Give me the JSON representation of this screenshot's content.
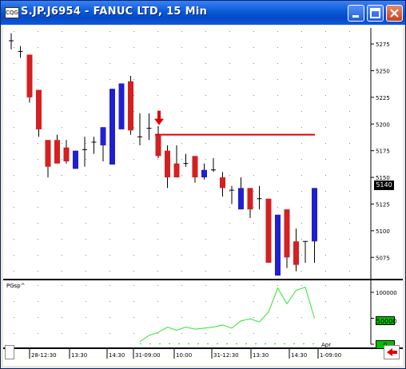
{
  "window": {
    "title": "S.JP.J6954 - FANUC LTD, 15 Min",
    "app_icon": "chart-app-icon"
  },
  "title_buttons": [
    "minimize",
    "maximize",
    "close"
  ],
  "colors": {
    "up": "#2020d0",
    "down": "#d42020",
    "signal_line": "#e00000",
    "indicator": "#33e033",
    "badge": "#00c000"
  },
  "chart_data": {
    "type": "candlestick",
    "title": "S.JP.J6954 - FANUC LTD, 15 Min",
    "y_ticks": [
      5275,
      5250,
      5225,
      5200,
      5175,
      5150,
      5125,
      5100,
      5075
    ],
    "ylim": [
      5055,
      5290
    ],
    "last_price": "5140",
    "x_tick_labels": [
      "28-12:30",
      "13:30",
      "14:30",
      "31-09:00",
      "10:00",
      "31-12:30",
      "13:30",
      "14:30",
      "1-09:00"
    ],
    "month_label": "Apr",
    "signal_level": 5190,
    "candles": [
      {
        "o": 5278,
        "h": 5285,
        "l": 5270,
        "c": 5278
      },
      {
        "o": 5268,
        "h": 5273,
        "l": 5262,
        "c": 5268
      },
      {
        "o": 5265,
        "h": 5265,
        "l": 5220,
        "c": 5225
      },
      {
        "o": 5232,
        "h": 5232,
        "l": 5188,
        "c": 5195
      },
      {
        "o": 5185,
        "h": 5185,
        "l": 5150,
        "c": 5160
      },
      {
        "o": 5185,
        "h": 5190,
        "l": 5163,
        "c": 5163
      },
      {
        "o": 5178,
        "h": 5185,
        "l": 5163,
        "c": 5165
      },
      {
        "o": 5158,
        "h": 5175,
        "l": 5158,
        "c": 5175
      },
      {
        "o": 5176,
        "h": 5188,
        "l": 5160,
        "c": 5176
      },
      {
        "o": 5183,
        "h": 5188,
        "l": 5172,
        "c": 5183
      },
      {
        "o": 5180,
        "h": 5197,
        "l": 5165,
        "c": 5197
      },
      {
        "o": 5162,
        "h": 5233,
        "l": 5162,
        "c": 5233
      },
      {
        "o": 5195,
        "h": 5238,
        "l": 5195,
        "c": 5238
      },
      {
        "o": 5240,
        "h": 5245,
        "l": 5190,
        "c": 5194
      },
      {
        "o": 5188,
        "h": 5210,
        "l": 5180,
        "c": 5188
      },
      {
        "o": 5196,
        "h": 5210,
        "l": 5185,
        "c": 5196
      },
      {
        "o": 5190,
        "h": 5198,
        "l": 5168,
        "c": 5170
      },
      {
        "o": 5175,
        "h": 5180,
        "l": 5140,
        "c": 5150
      },
      {
        "o": 5163,
        "h": 5180,
        "l": 5150,
        "c": 5150
      },
      {
        "o": 5163,
        "h": 5172,
        "l": 5160,
        "c": 5163
      },
      {
        "o": 5170,
        "h": 5170,
        "l": 5145,
        "c": 5150
      },
      {
        "o": 5150,
        "h": 5163,
        "l": 5148,
        "c": 5157
      },
      {
        "o": 5157,
        "h": 5168,
        "l": 5155,
        "c": 5157
      },
      {
        "o": 5150,
        "h": 5155,
        "l": 5132,
        "c": 5140
      },
      {
        "o": 5138,
        "h": 5142,
        "l": 5125,
        "c": 5138
      },
      {
        "o": 5120,
        "h": 5150,
        "l": 5120,
        "c": 5140
      },
      {
        "o": 5140,
        "h": 5140,
        "l": 5112,
        "c": 5120
      },
      {
        "o": 5130,
        "h": 5142,
        "l": 5120,
        "c": 5130
      },
      {
        "o": 5130,
        "h": 5130,
        "l": 5070,
        "c": 5070
      },
      {
        "o": 5058,
        "h": 5115,
        "l": 5058,
        "c": 5115
      },
      {
        "o": 5120,
        "h": 5120,
        "l": 5065,
        "c": 5075
      },
      {
        "o": 5090,
        "h": 5102,
        "l": 5062,
        "c": 5068
      },
      {
        "o": 5090,
        "h": 5090,
        "l": 5070,
        "c": 5090
      },
      {
        "o": 5090,
        "h": 5140,
        "l": 5070,
        "c": 5140
      }
    ],
    "indicator": {
      "name": "PGsp^",
      "y_ticks": [
        "100000",
        "50000",
        "0"
      ],
      "ylim": [
        0,
        120000
      ],
      "values": [
        null,
        null,
        null,
        null,
        null,
        null,
        null,
        null,
        null,
        null,
        null,
        null,
        null,
        null,
        5000,
        17000,
        23000,
        33000,
        27000,
        33000,
        29000,
        31000,
        33000,
        37000,
        31000,
        45000,
        49000,
        43000,
        62000,
        108000,
        78000,
        104000,
        110000,
        50000
      ]
    }
  },
  "labels": {
    "indicator_label": "PGsp^",
    "osc_top_value": "50000",
    "osc_bottom_value": "0"
  }
}
